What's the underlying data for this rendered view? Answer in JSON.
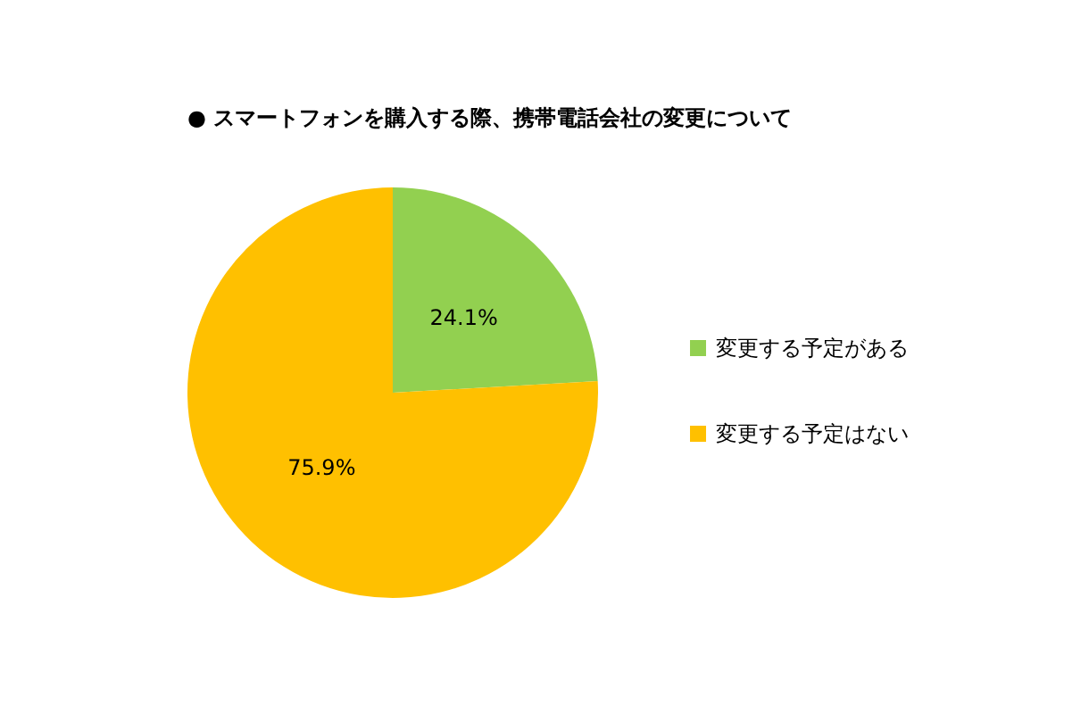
{
  "chart_data": {
    "type": "pie",
    "title": "● スマートフォンを購入する際、携帯電話会社の変更について",
    "categories": [
      "変更する予定がある",
      "変更する予定はない"
    ],
    "values": [
      24.1,
      75.9
    ],
    "colors": [
      "#92d050",
      "#ffc000"
    ],
    "value_labels": [
      "24.1%",
      "75.9%"
    ],
    "legend": "right"
  }
}
